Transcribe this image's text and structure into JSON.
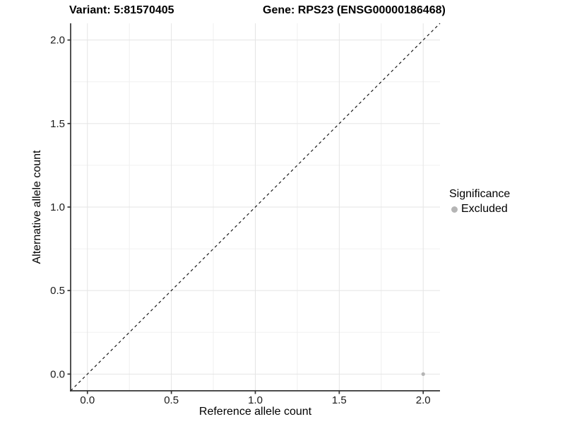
{
  "header": {
    "title_left": "Variant: 5:81570405",
    "title_right": "Gene: RPS23 (ENSG00000186468)"
  },
  "chart_data": {
    "type": "scatter",
    "title": "Variant: 5:81570405   Gene: RPS23 (ENSG00000186468)",
    "xlabel": "Reference allele count",
    "ylabel": "Alternative allele count",
    "xlim": [
      -0.1,
      2.1
    ],
    "ylim": [
      -0.1,
      2.1
    ],
    "grid": true,
    "x_tick_values": [
      0,
      0.5,
      1,
      1.5,
      2
    ],
    "x_tick_labels": [
      "0.0",
      "0.5",
      "1.0",
      "1.5",
      "2.0"
    ],
    "y_tick_values": [
      0,
      0.5,
      1,
      1.5,
      2
    ],
    "y_tick_labels": [
      "0.0",
      "0.5",
      "1.0",
      "1.5",
      "2.0"
    ],
    "x_minor_gridlines": [
      0.25,
      0.75,
      1.25,
      1.75
    ],
    "y_minor_gridlines": [
      0.25,
      0.75,
      1.25,
      1.75
    ],
    "reference_line": {
      "type": "identity",
      "style": "dashed",
      "from": [
        -0.1,
        -0.1
      ],
      "to": [
        2.1,
        2.1
      ]
    },
    "points": [
      {
        "x": 2.0,
        "y": 0.0,
        "group": "Excluded"
      }
    ],
    "legend": {
      "title": "Significance",
      "position": "right",
      "items": [
        {
          "label": "Excluded",
          "color": "#b5b5b5"
        }
      ]
    },
    "colors": {
      "background": "#ffffff",
      "point": "#b5b5b5",
      "grid_major": "#e4e4e4",
      "grid_minor": "#f0f0f0",
      "axis_line": "#333333",
      "dashed_line": "#1a1a1a",
      "tick_text": "#1a1a1a"
    }
  }
}
